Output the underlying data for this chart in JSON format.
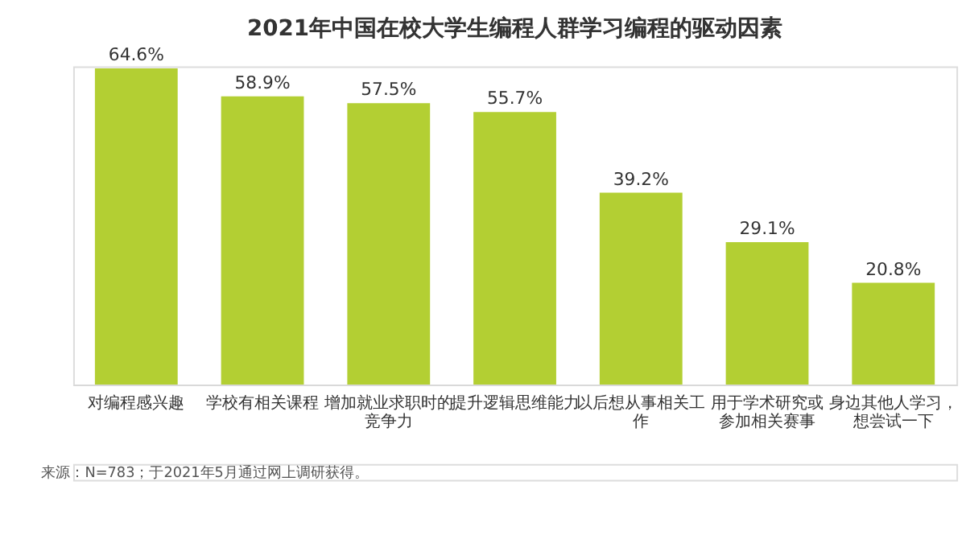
{
  "chart_data": {
    "type": "bar",
    "title": "2021年中国在校大学生编程人群学习编程的驱动因素",
    "categories": [
      "对编程感兴趣",
      "学校有相关课程",
      "增加就业求职时的竞争力",
      "提升逻辑思维能力",
      "以后想从事相关工作",
      "用于学术研究或参加相关赛事",
      "身边其他人学习，想尝试一下"
    ],
    "values": [
      64.6,
      58.9,
      57.5,
      55.7,
      39.2,
      29.1,
      20.8
    ],
    "value_labels": [
      "64.6%",
      "58.9%",
      "57.5%",
      "55.7%",
      "39.2%",
      "29.1%",
      "20.8%"
    ],
    "color": "#b3cf33",
    "grid": false,
    "tick_labels": "x",
    "annotations": [
      "来源：N=783；于2021年5月通过网上调研获得。"
    ]
  }
}
